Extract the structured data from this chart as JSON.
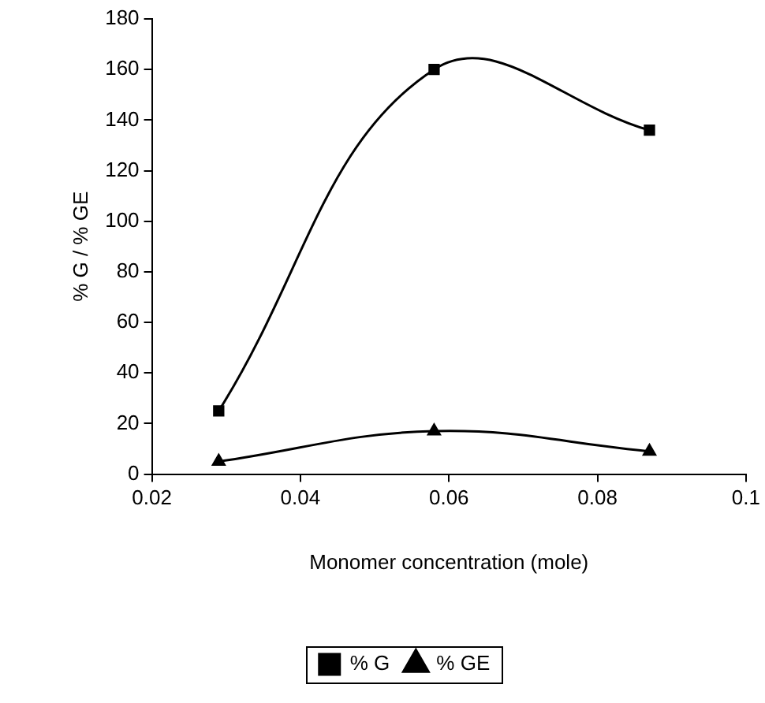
{
  "chart_data": {
    "type": "line",
    "xlabel": "Monomer concentration (mole)",
    "ylabel": "% G / % GE",
    "x": [
      0.029,
      0.058,
      0.087
    ],
    "series": [
      {
        "name": "% G",
        "color": "#000000",
        "marker": "square",
        "values": [
          25,
          160,
          136
        ]
      },
      {
        "name": "% GE",
        "color": "#000000",
        "marker": "triangle",
        "values": [
          5,
          17,
          9
        ]
      }
    ],
    "xlim": [
      0.02,
      0.1
    ],
    "xticks": [
      0.02,
      0.04,
      0.06,
      0.08,
      0.1
    ],
    "ylim": [
      0,
      180
    ],
    "yticks": [
      0,
      20,
      40,
      60,
      80,
      100,
      120,
      140,
      160,
      180
    ],
    "grid": false,
    "legend": "bottom"
  }
}
